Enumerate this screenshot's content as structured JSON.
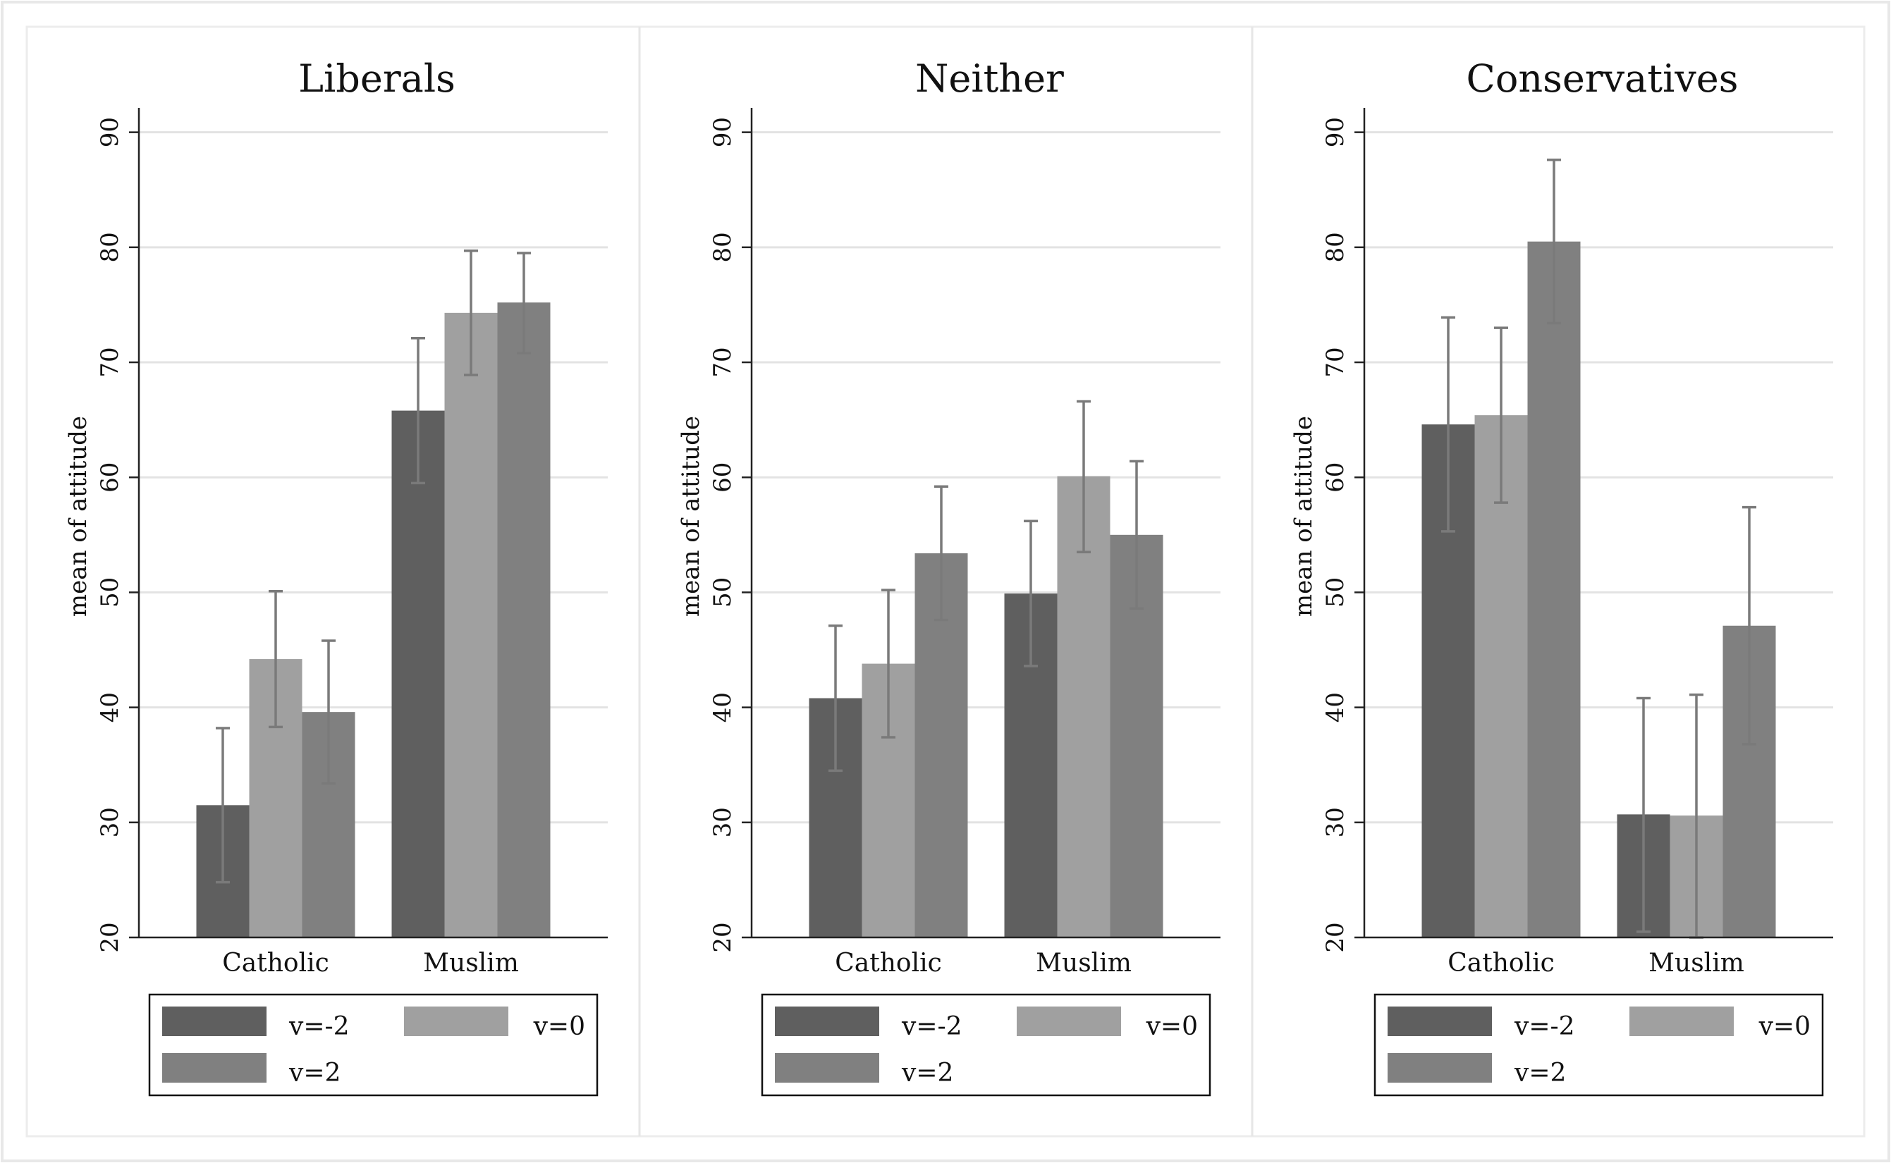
{
  "chart_data": [
    {
      "type": "bar",
      "title": "Liberals",
      "ylabel": "mean of attitude",
      "xlabel": "",
      "ylim": [
        20,
        92
      ],
      "yticks": [
        20,
        30,
        40,
        50,
        60,
        70,
        80,
        90
      ],
      "grid": true,
      "legend_position": "bottom",
      "categories": [
        "Catholic",
        "Muslim"
      ],
      "series": [
        {
          "name": "v=-2",
          "color": "#5f5f5f",
          "values": [
            31.5,
            65.8
          ],
          "ci_low": [
            24.8,
            59.5
          ],
          "ci_high": [
            38.2,
            72.1
          ]
        },
        {
          "name": "v=0",
          "color": "#a0a0a0",
          "values": [
            44.2,
            74.3
          ],
          "ci_low": [
            38.3,
            68.9
          ],
          "ci_high": [
            50.1,
            79.7
          ]
        },
        {
          "name": "v=2",
          "color": "#808080",
          "values": [
            39.6,
            75.2
          ],
          "ci_low": [
            33.4,
            70.8
          ],
          "ci_high": [
            45.8,
            79.5
          ]
        }
      ]
    },
    {
      "type": "bar",
      "title": "Neither",
      "ylabel": "mean of attitude",
      "xlabel": "",
      "ylim": [
        20,
        92
      ],
      "yticks": [
        20,
        30,
        40,
        50,
        60,
        70,
        80,
        90
      ],
      "grid": true,
      "legend_position": "bottom",
      "categories": [
        "Catholic",
        "Muslim"
      ],
      "series": [
        {
          "name": "v=-2",
          "color": "#5f5f5f",
          "values": [
            40.8,
            49.9
          ],
          "ci_low": [
            34.5,
            43.6
          ],
          "ci_high": [
            47.1,
            56.2
          ]
        },
        {
          "name": "v=0",
          "color": "#a0a0a0",
          "values": [
            43.8,
            60.1
          ],
          "ci_low": [
            37.4,
            53.5
          ],
          "ci_high": [
            50.2,
            66.6
          ]
        },
        {
          "name": "v=2",
          "color": "#808080",
          "values": [
            53.4,
            55.0
          ],
          "ci_low": [
            47.6,
            48.6
          ],
          "ci_high": [
            59.2,
            61.4
          ]
        }
      ]
    },
    {
      "type": "bar",
      "title": "Conservatives",
      "ylabel": "mean of attitude",
      "xlabel": "",
      "ylim": [
        20,
        92
      ],
      "yticks": [
        20,
        30,
        40,
        50,
        60,
        70,
        80,
        90
      ],
      "grid": true,
      "legend_position": "bottom",
      "categories": [
        "Catholic",
        "Muslim"
      ],
      "series": [
        {
          "name": "v=-2",
          "color": "#5f5f5f",
          "values": [
            64.6,
            30.7
          ],
          "ci_low": [
            55.3,
            20.5
          ],
          "ci_high": [
            73.9,
            40.8
          ]
        },
        {
          "name": "v=0",
          "color": "#a0a0a0",
          "values": [
            65.4,
            30.6
          ],
          "ci_low": [
            57.8,
            20.0
          ],
          "ci_high": [
            73.0,
            41.1
          ]
        },
        {
          "name": "v=2",
          "color": "#808080",
          "values": [
            80.5,
            47.1
          ],
          "ci_low": [
            73.4,
            36.8
          ],
          "ci_high": [
            87.6,
            57.4
          ]
        }
      ]
    }
  ]
}
